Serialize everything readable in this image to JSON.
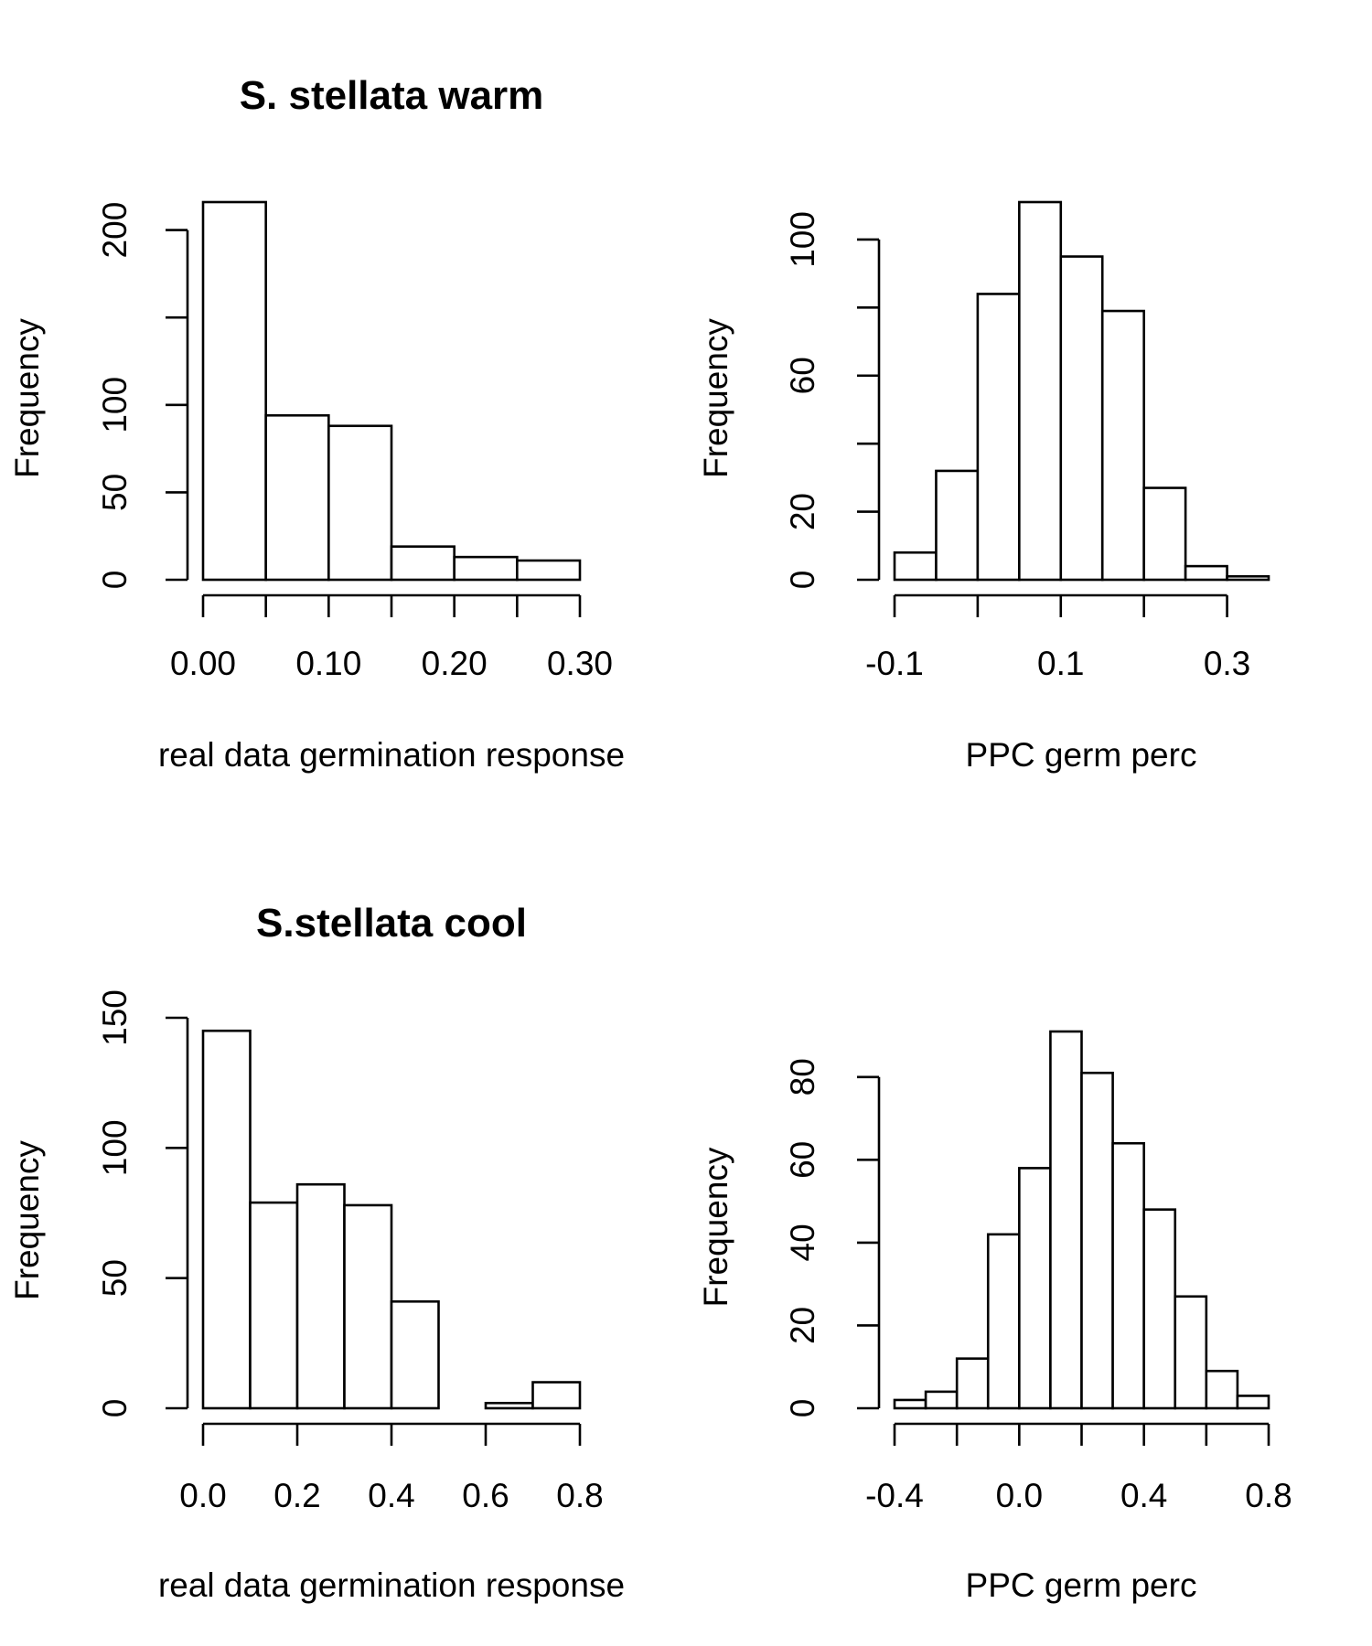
{
  "chart_data": [
    {
      "type": "bar",
      "title": "S. stellata warm",
      "xlabel": "real data germination response",
      "ylabel": "Frequency",
      "bin_edges": [
        0.0,
        0.05,
        0.1,
        0.15,
        0.2,
        0.25,
        0.3
      ],
      "values": [
        216,
        94,
        88,
        19,
        13,
        11
      ],
      "xlim": [
        0.0,
        0.3
      ],
      "ylim": [
        0,
        216
      ],
      "xticks": [
        0.0,
        0.05,
        0.1,
        0.15,
        0.2,
        0.25,
        0.3
      ],
      "xticklabels": [
        "0.00",
        "",
        "0.10",
        "",
        "0.20",
        "",
        "0.30"
      ],
      "yticks": [
        0,
        50,
        100,
        150,
        200
      ],
      "yticklabels": [
        "0",
        "50",
        "100",
        "",
        "200"
      ],
      "grid": false
    },
    {
      "type": "bar",
      "title": "",
      "xlabel": "PPC germ perc",
      "ylabel": "Frequency",
      "bin_edges": [
        -0.1,
        -0.05,
        0.0,
        0.05,
        0.1,
        0.15,
        0.2,
        0.25,
        0.3,
        0.35
      ],
      "values": [
        8,
        32,
        84,
        111,
        95,
        79,
        27,
        4,
        1
      ],
      "xlim": [
        -0.1,
        0.35
      ],
      "ylim": [
        0,
        111
      ],
      "xticks": [
        -0.1,
        0.0,
        0.1,
        0.2,
        0.3
      ],
      "xticklabels": [
        "-0.1",
        "",
        "0.1",
        "",
        "0.3"
      ],
      "yticks": [
        0,
        20,
        40,
        60,
        80,
        100
      ],
      "yticklabels": [
        "0",
        "20",
        "",
        "60",
        "",
        "100"
      ],
      "grid": false
    },
    {
      "type": "bar",
      "title": "S.stellata cool",
      "xlabel": "real data germination response",
      "ylabel": "Frequency",
      "bin_edges": [
        0.0,
        0.1,
        0.2,
        0.3,
        0.4,
        0.5,
        0.6,
        0.7,
        0.8
      ],
      "values": [
        145,
        79,
        86,
        78,
        41,
        0,
        2,
        10
      ],
      "xlim": [
        0.0,
        0.8
      ],
      "ylim": [
        0,
        150
      ],
      "xticks": [
        0.0,
        0.2,
        0.4,
        0.6,
        0.8
      ],
      "xticklabels": [
        "0.0",
        "0.2",
        "0.4",
        "0.6",
        "0.8"
      ],
      "yticks": [
        0,
        50,
        100,
        150
      ],
      "yticklabels": [
        "0",
        "50",
        "100",
        "150"
      ],
      "grid": false
    },
    {
      "type": "bar",
      "title": "",
      "xlabel": "PPC germ perc",
      "ylabel": "Frequency",
      "bin_edges": [
        -0.4,
        -0.3,
        -0.2,
        -0.1,
        0.0,
        0.1,
        0.2,
        0.3,
        0.4,
        0.5,
        0.6,
        0.7,
        0.8
      ],
      "values": [
        2,
        4,
        12,
        42,
        58,
        91,
        81,
        64,
        48,
        27,
        9,
        3
      ],
      "xlim": [
        -0.4,
        0.8
      ],
      "ylim": [
        0,
        91
      ],
      "xticks": [
        -0.4,
        -0.2,
        0.0,
        0.2,
        0.4,
        0.6,
        0.8
      ],
      "xticklabels": [
        "-0.4",
        "",
        "0.0",
        "",
        "0.4",
        "",
        "0.8"
      ],
      "yticks": [
        0,
        20,
        40,
        60,
        80
      ],
      "yticklabels": [
        "0",
        "20",
        "40",
        "60",
        "80"
      ],
      "grid": false
    }
  ]
}
